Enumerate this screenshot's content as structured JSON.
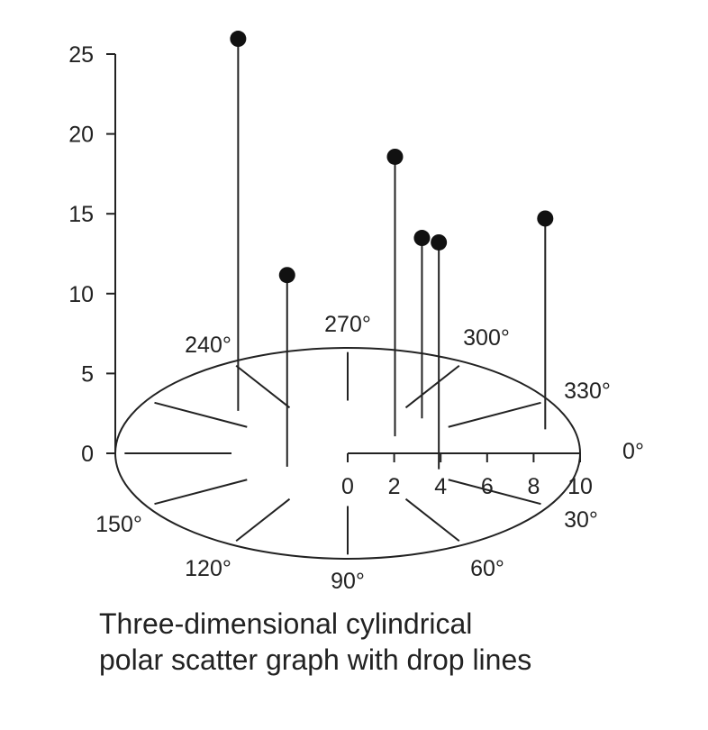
{
  "chart_data": {
    "type": "scatter",
    "subtype": "3d-cylindrical-polar-with-drop-lines",
    "title": "",
    "caption": [
      "Three-dimensional cylindrical",
      "polar scatter graph with drop lines"
    ],
    "z_axis": {
      "range": [
        0,
        25
      ],
      "ticks": [
        0,
        5,
        10,
        15,
        20,
        25
      ]
    },
    "radial_axis": {
      "range": [
        0,
        10
      ],
      "ticks": [
        0,
        2,
        4,
        6,
        8,
        10
      ]
    },
    "angle_labels": [
      "0°",
      "30°",
      "60°",
      "90°",
      "120°",
      "150°",
      "240°",
      "270°",
      "300°",
      "330°"
    ],
    "points": [
      {
        "r": 6.2,
        "theta": 220.5,
        "z": 23.3
      },
      {
        "r": 2.9,
        "theta": 154,
        "z": 12.0
      },
      {
        "r": 2.6,
        "theta": 321.5,
        "z": 17.5
      },
      {
        "r": 4.6,
        "theta": 314,
        "z": 11.3
      },
      {
        "r": 4.2,
        "theta": 21,
        "z": 14.2
      },
      {
        "r": 8.8,
        "theta": 345,
        "z": 13.2
      }
    ],
    "grid": false,
    "legend": "none"
  }
}
